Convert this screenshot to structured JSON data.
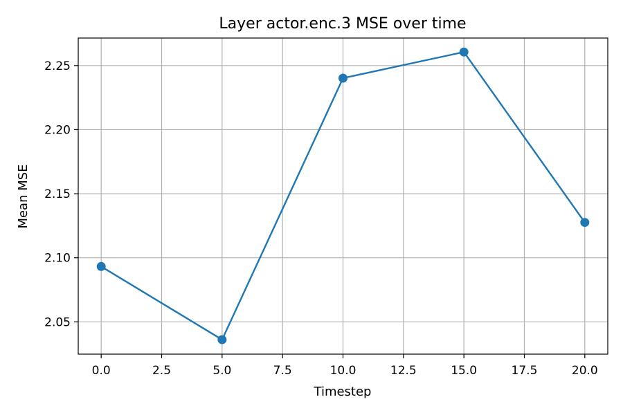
{
  "chart_data": {
    "type": "line",
    "title": "Layer actor.enc.3 MSE over time",
    "xlabel": "Timestep",
    "ylabel": "Mean MSE",
    "xlim": [
      -0.95,
      20.95
    ],
    "ylim": [
      2.0248,
      2.2715
    ],
    "xticks": [
      0,
      2.5,
      5,
      7.5,
      10,
      12.5,
      15,
      17.5,
      20
    ],
    "xtick_labels": [
      "0.0",
      "2.5",
      "5.0",
      "7.5",
      "10.0",
      "12.5",
      "15.0",
      "17.5",
      "20.0"
    ],
    "yticks": [
      2.05,
      2.1,
      2.15,
      2.2,
      2.25
    ],
    "ytick_labels": [
      "2.05",
      "2.10",
      "2.15",
      "2.20",
      "2.25"
    ],
    "grid": true,
    "series": [
      {
        "color": "#1f77b4",
        "marker": "circle",
        "x": [
          0,
          5,
          10,
          15,
          20
        ],
        "y": [
          2.0932,
          2.0361,
          2.2402,
          2.2606,
          2.1276
        ]
      }
    ]
  }
}
